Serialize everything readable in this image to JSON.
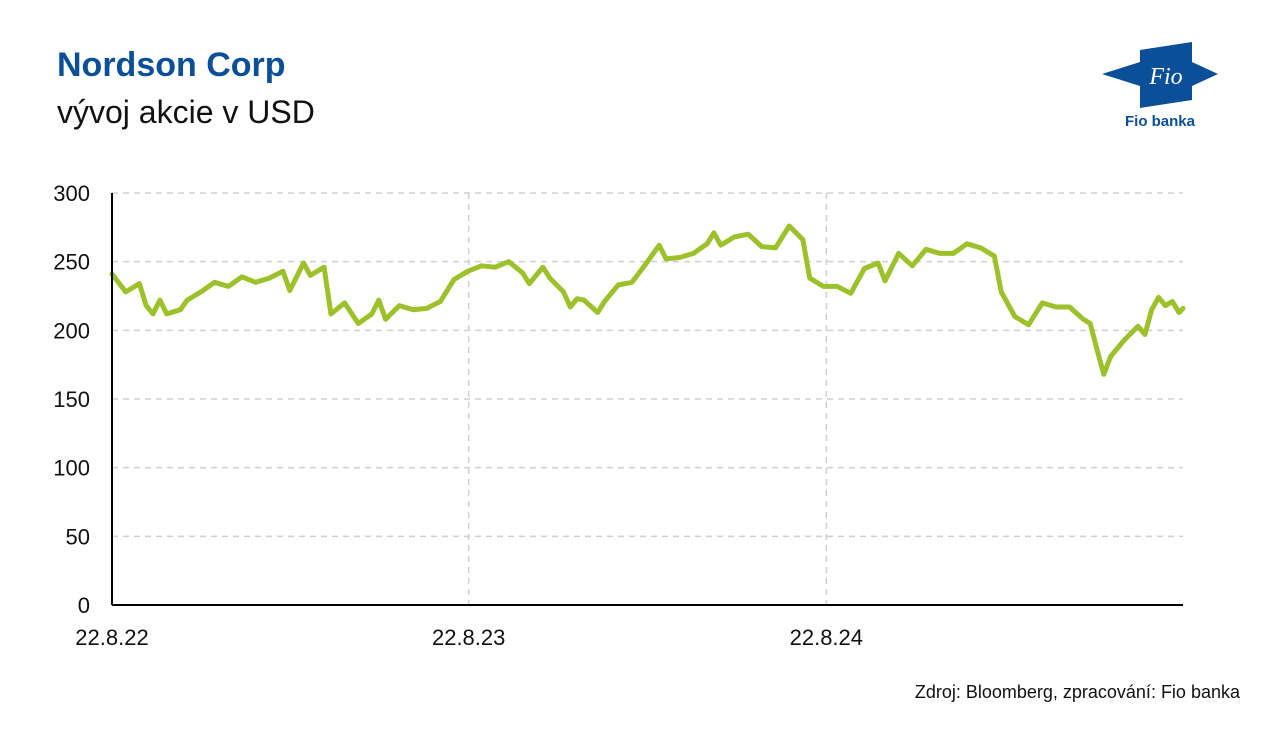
{
  "header": {
    "title": "Nordson Corp",
    "subtitle": "vývoj akcie v USD"
  },
  "logo": {
    "mark": "Fio",
    "name": "Fio banka",
    "color": "#0b4f98"
  },
  "footer": {
    "source": "Zdroj: Bloomberg, zpracování: Fio banka"
  },
  "colors": {
    "line": "#9dc12b",
    "grid": "#d0d0d0",
    "axis": "#000000"
  },
  "chart_data": {
    "type": "line",
    "title": "Nordson Corp",
    "subtitle": "vývoj akcie v USD",
    "x_type": "date",
    "x_ticks": [
      "22.8.22",
      "22.8.23",
      "22.8.24"
    ],
    "x_range": [
      "2022-08-22",
      "2025-08-22"
    ],
    "ylim": [
      0,
      300
    ],
    "y_ticks": [
      0,
      50,
      100,
      150,
      200,
      250,
      300
    ],
    "grid": true,
    "series": [
      {
        "values": [
          [
            "2022-08-22",
            241
          ],
          [
            "2022-09-05",
            228
          ],
          [
            "2022-09-19",
            234
          ],
          [
            "2022-09-26",
            218
          ],
          [
            "2022-10-03",
            212
          ],
          [
            "2022-10-10",
            222
          ],
          [
            "2022-10-17",
            212
          ],
          [
            "2022-10-31",
            215
          ],
          [
            "2022-11-07",
            222
          ],
          [
            "2022-11-21",
            228
          ],
          [
            "2022-12-05",
            235
          ],
          [
            "2022-12-19",
            232
          ],
          [
            "2023-01-02",
            239
          ],
          [
            "2023-01-16",
            235
          ],
          [
            "2023-01-30",
            238
          ],
          [
            "2023-02-13",
            243
          ],
          [
            "2023-02-20",
            229
          ],
          [
            "2023-03-06",
            249
          ],
          [
            "2023-03-13",
            240
          ],
          [
            "2023-03-27",
            246
          ],
          [
            "2023-04-03",
            212
          ],
          [
            "2023-04-17",
            220
          ],
          [
            "2023-05-01",
            205
          ],
          [
            "2023-05-15",
            212
          ],
          [
            "2023-05-22",
            222
          ],
          [
            "2023-05-29",
            208
          ],
          [
            "2023-06-12",
            218
          ],
          [
            "2023-06-26",
            215
          ],
          [
            "2023-07-10",
            216
          ],
          [
            "2023-07-24",
            221
          ],
          [
            "2023-08-07",
            237
          ],
          [
            "2023-08-21",
            243
          ],
          [
            "2023-09-04",
            247
          ],
          [
            "2023-09-18",
            246
          ],
          [
            "2023-10-02",
            250
          ],
          [
            "2023-10-16",
            242
          ],
          [
            "2023-10-23",
            234
          ],
          [
            "2023-11-06",
            246
          ],
          [
            "2023-11-13",
            238
          ],
          [
            "2023-11-27",
            228
          ],
          [
            "2023-12-04",
            217
          ],
          [
            "2023-12-11",
            223
          ],
          [
            "2023-12-18",
            222
          ],
          [
            "2024-01-01",
            213
          ],
          [
            "2024-01-08",
            221
          ],
          [
            "2024-01-22",
            233
          ],
          [
            "2024-02-05",
            235
          ],
          [
            "2024-02-19",
            248
          ],
          [
            "2024-03-04",
            262
          ],
          [
            "2024-03-11",
            252
          ],
          [
            "2024-03-25",
            253
          ],
          [
            "2024-04-08",
            256
          ],
          [
            "2024-04-22",
            263
          ],
          [
            "2024-04-29",
            271
          ],
          [
            "2024-05-06",
            262
          ],
          [
            "2024-05-20",
            268
          ],
          [
            "2024-06-03",
            270
          ],
          [
            "2024-06-17",
            261
          ],
          [
            "2024-07-01",
            260
          ],
          [
            "2024-07-15",
            276
          ],
          [
            "2024-07-29",
            266
          ],
          [
            "2024-08-05",
            238
          ],
          [
            "2024-08-19",
            232
          ],
          [
            "2024-09-02",
            232
          ],
          [
            "2024-09-16",
            227
          ],
          [
            "2024-09-30",
            245
          ],
          [
            "2024-10-14",
            249
          ],
          [
            "2024-10-21",
            236
          ],
          [
            "2024-11-04",
            256
          ],
          [
            "2024-11-18",
            247
          ],
          [
            "2024-12-02",
            259
          ],
          [
            "2024-12-16",
            256
          ],
          [
            "2024-12-30",
            256
          ],
          [
            "2025-01-13",
            263
          ],
          [
            "2025-01-27",
            260
          ],
          [
            "2025-02-10",
            254
          ],
          [
            "2025-02-17",
            228
          ],
          [
            "2025-03-03",
            210
          ],
          [
            "2025-03-17",
            204
          ],
          [
            "2025-03-31",
            220
          ],
          [
            "2025-04-14",
            217
          ],
          [
            "2025-04-28",
            217
          ],
          [
            "2025-05-12",
            208
          ],
          [
            "2025-05-19",
            205
          ],
          [
            "2025-05-26",
            186
          ],
          [
            "2025-06-02",
            168
          ],
          [
            "2025-06-09",
            181
          ],
          [
            "2025-06-23",
            193
          ],
          [
            "2025-07-07",
            203
          ],
          [
            "2025-07-14",
            197
          ],
          [
            "2025-07-21",
            215
          ],
          [
            "2025-07-28",
            224
          ],
          [
            "2025-08-04",
            218
          ],
          [
            "2025-08-11",
            221
          ],
          [
            "2025-08-18",
            213
          ],
          [
            "2025-08-22",
            216
          ]
        ]
      }
    ]
  }
}
